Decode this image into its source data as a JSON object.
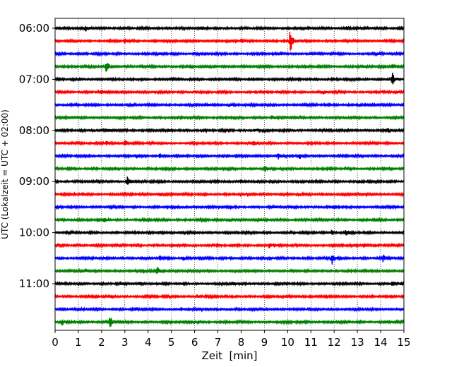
{
  "chart_data": {
    "type": "line",
    "title": "",
    "xlabel": "Zeit  [min]",
    "ylabel": "UTC (Lokalzeit = UTC + 02:00)",
    "xlim": [
      0,
      15
    ],
    "x_ticks": [
      0,
      1,
      2,
      3,
      4,
      5,
      6,
      7,
      8,
      9,
      10,
      11,
      12,
      13,
      14,
      15
    ],
    "x_tick_labels": [
      "0",
      "1",
      "2",
      "3",
      "4",
      "5",
      "6",
      "7",
      "8",
      "9",
      "10",
      "11",
      "12",
      "13",
      "14",
      "15"
    ],
    "y_tick_labels": [
      "06:00",
      "07:00",
      "08:00",
      "09:00",
      "10:00",
      "11:00"
    ],
    "traces_per_hour": 4,
    "minutes_per_trace": 15,
    "grid": "vertical-dotted",
    "legend": "none",
    "trace_colors": [
      "#000000",
      "#ff0000",
      "#0000ff",
      "#008000"
    ],
    "traces": [
      {
        "label": "06:00",
        "color": "#000000",
        "events": [
          {
            "t": 1.3,
            "amp": 0.8
          },
          {
            "t": 6.3,
            "amp": 0.3
          },
          {
            "t": 12.5,
            "amp": 0.3
          }
        ]
      },
      {
        "label": "06:15",
        "color": "#ff0000",
        "events": [
          {
            "t": 10.1,
            "amp": 2.8
          },
          {
            "t": 3.0,
            "amp": 0.4
          },
          {
            "t": 8.0,
            "amp": 0.4
          }
        ]
      },
      {
        "label": "06:30",
        "color": "#0000ff",
        "events": [
          {
            "t": 5.0,
            "amp": 0.2
          },
          {
            "t": 11.0,
            "amp": 0.2
          }
        ]
      },
      {
        "label": "06:45",
        "color": "#008000",
        "events": [
          {
            "t": 2.2,
            "amp": 1.2
          },
          {
            "t": 14.5,
            "amp": 0.4
          }
        ]
      },
      {
        "label": "07:00",
        "color": "#000000",
        "events": [
          {
            "t": 14.5,
            "amp": 1.2
          },
          {
            "t": 3.5,
            "amp": 0.2
          }
        ]
      },
      {
        "label": "07:15",
        "color": "#ff0000",
        "events": [
          {
            "t": 2.0,
            "amp": 0.3
          },
          {
            "t": 11.5,
            "amp": 0.3
          }
        ]
      },
      {
        "label": "07:30",
        "color": "#0000ff",
        "events": [
          {
            "t": 7.5,
            "amp": 0.3
          },
          {
            "t": 13.0,
            "amp": 0.3
          }
        ]
      },
      {
        "label": "07:45",
        "color": "#008000",
        "events": [
          {
            "t": 5.8,
            "amp": 0.5
          },
          {
            "t": 9.3,
            "amp": 0.5
          }
        ]
      },
      {
        "label": "08:00",
        "color": "#000000",
        "events": [
          {
            "t": 14.3,
            "amp": 0.5
          },
          {
            "t": 8.6,
            "amp": 0.4
          },
          {
            "t": 1.1,
            "amp": 0.3
          }
        ]
      },
      {
        "label": "08:15",
        "color": "#ff0000",
        "events": [
          {
            "t": 2.2,
            "amp": 0.5
          },
          {
            "t": 3.0,
            "amp": 0.6
          },
          {
            "t": 8.5,
            "amp": 0.4
          }
        ]
      },
      {
        "label": "08:30",
        "color": "#0000ff",
        "events": [
          {
            "t": 3.5,
            "amp": 0.5
          },
          {
            "t": 4.5,
            "amp": 0.5
          },
          {
            "t": 9.6,
            "amp": 0.5
          },
          {
            "t": 10.5,
            "amp": 0.5
          }
        ]
      },
      {
        "label": "08:45",
        "color": "#008000",
        "events": [
          {
            "t": 9.0,
            "amp": 0.7
          },
          {
            "t": 2.6,
            "amp": 0.3
          },
          {
            "t": 12.5,
            "amp": 0.3
          }
        ]
      },
      {
        "label": "09:00",
        "color": "#000000",
        "events": [
          {
            "t": 3.1,
            "amp": 0.9
          },
          {
            "t": 13.0,
            "amp": 0.4
          },
          {
            "t": 8.0,
            "amp": 0.3
          }
        ]
      },
      {
        "label": "09:15",
        "color": "#ff0000",
        "events": [
          {
            "t": 4.5,
            "amp": 0.4
          },
          {
            "t": 10.5,
            "amp": 0.3
          }
        ]
      },
      {
        "label": "09:30",
        "color": "#0000ff",
        "events": [
          {
            "t": 6.0,
            "amp": 0.3
          },
          {
            "t": 12.0,
            "amp": 0.3
          }
        ]
      },
      {
        "label": "09:45",
        "color": "#008000",
        "events": [
          {
            "t": 2.1,
            "amp": 0.5
          },
          {
            "t": 7.5,
            "amp": 0.3
          }
        ]
      },
      {
        "label": "10:00",
        "color": "#000000",
        "events": [
          {
            "t": 12.5,
            "amp": 0.6
          },
          {
            "t": 11.9,
            "amp": 0.5
          },
          {
            "t": 4.5,
            "amp": 0.3
          }
        ]
      },
      {
        "label": "10:15",
        "color": "#ff0000",
        "events": [
          {
            "t": 9.2,
            "amp": 0.5
          },
          {
            "t": 13.3,
            "amp": 0.4
          },
          {
            "t": 3.5,
            "amp": 0.3
          }
        ]
      },
      {
        "label": "10:30",
        "color": "#0000ff",
        "events": [
          {
            "t": 11.9,
            "amp": 1.3
          },
          {
            "t": 14.1,
            "amp": 0.6
          },
          {
            "t": 4.5,
            "amp": 0.5
          },
          {
            "t": 5.5,
            "amp": 0.5
          }
        ]
      },
      {
        "label": "10:45",
        "color": "#008000",
        "events": [
          {
            "t": 4.4,
            "amp": 1.0
          },
          {
            "t": 1.3,
            "amp": 0.4
          },
          {
            "t": 3.8,
            "amp": 0.4
          }
        ]
      },
      {
        "label": "11:00",
        "color": "#000000",
        "events": [
          {
            "t": 14.5,
            "amp": 0.6
          },
          {
            "t": 7.6,
            "amp": 0.3
          },
          {
            "t": 3.6,
            "amp": 0.3
          }
        ]
      },
      {
        "label": "11:15",
        "color": "#ff0000",
        "events": [
          {
            "t": 6.1,
            "amp": 0.3
          },
          {
            "t": 10.0,
            "amp": 0.2
          }
        ]
      },
      {
        "label": "11:30",
        "color": "#0000ff",
        "events": [
          {
            "t": 3.5,
            "amp": 0.2
          },
          {
            "t": 9.0,
            "amp": 0.2
          }
        ]
      },
      {
        "label": "11:45",
        "color": "#008000",
        "events": [
          {
            "t": 2.35,
            "amp": 1.5
          },
          {
            "t": 0.3,
            "amp": 0.5
          },
          {
            "t": 6.0,
            "amp": 0.3
          }
        ]
      }
    ]
  }
}
